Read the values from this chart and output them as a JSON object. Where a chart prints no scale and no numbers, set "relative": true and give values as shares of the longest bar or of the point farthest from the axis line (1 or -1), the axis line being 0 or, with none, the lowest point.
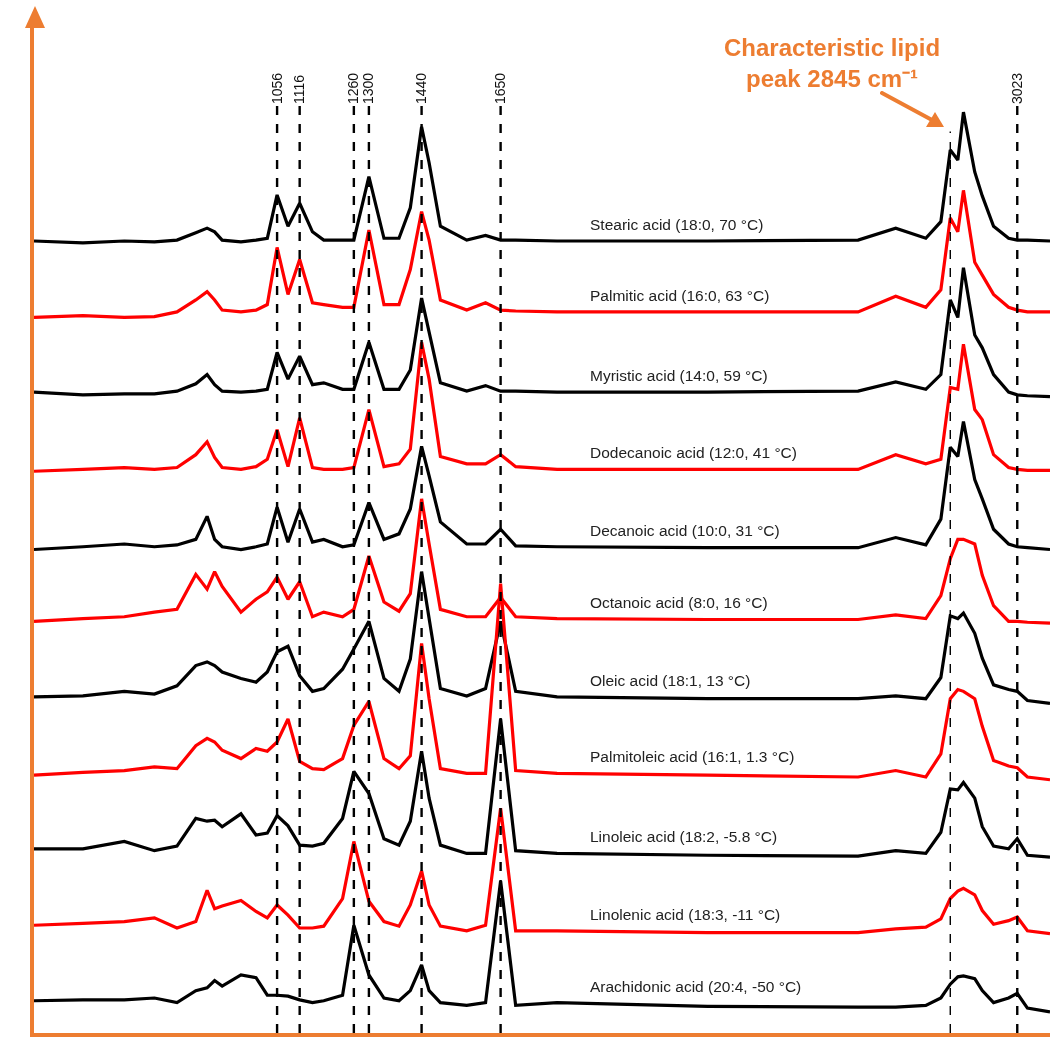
{
  "chart_data": {
    "type": "line",
    "relative": true,
    "legend": false,
    "grid": false,
    "tick_labels": "x",
    "marker": "none",
    "line_style": "solid",
    "xlim": [
      410,
      3110
    ],
    "xticks": [
      1056,
      1116,
      1260,
      1300,
      1440,
      1650,
      3023
    ],
    "x": [
      410,
      540,
      650,
      730,
      790,
      840,
      870,
      890,
      910,
      960,
      1000,
      1030,
      1056,
      1085,
      1116,
      1150,
      1180,
      1230,
      1260,
      1300,
      1340,
      1380,
      1410,
      1440,
      1460,
      1490,
      1560,
      1610,
      1650,
      1690,
      1800,
      2200,
      2600,
      2700,
      2780,
      2820,
      2845,
      2865,
      2880,
      2910,
      2930,
      2960,
      3000,
      3023,
      3050,
      3110
    ],
    "series": [
      {
        "name": "Stearic acid (18:0, 70 °C)",
        "color": "#000000",
        "values": [
          0.86,
          0.858,
          0.86,
          0.859,
          0.861,
          0.869,
          0.874,
          0.87,
          0.861,
          0.859,
          0.861,
          0.863,
          0.91,
          0.876,
          0.901,
          0.87,
          0.861,
          0.861,
          0.861,
          0.93,
          0.863,
          0.863,
          0.896,
          0.984,
          0.945,
          0.876,
          0.861,
          0.866,
          0.861,
          0.861,
          0.86,
          0.86,
          0.861,
          0.874,
          0.863,
          0.881,
          0.959,
          0.948,
          1.0,
          0.935,
          0.909,
          0.876,
          0.863,
          0.861,
          0.861,
          0.86
        ]
      },
      {
        "name": "Palmitic acid (16:0, 63 °C)",
        "color": "#ff0000",
        "values": [
          0.777,
          0.779,
          0.777,
          0.778,
          0.783,
          0.796,
          0.805,
          0.796,
          0.785,
          0.783,
          0.785,
          0.791,
          0.853,
          0.802,
          0.84,
          0.793,
          0.791,
          0.788,
          0.788,
          0.872,
          0.791,
          0.791,
          0.829,
          0.892,
          0.861,
          0.796,
          0.785,
          0.793,
          0.785,
          0.784,
          0.783,
          0.783,
          0.783,
          0.8,
          0.788,
          0.807,
          0.885,
          0.87,
          0.915,
          0.837,
          0.823,
          0.802,
          0.788,
          0.785,
          0.783,
          0.783
        ]
      },
      {
        "name": "Myristic acid (14:0, 59 °C)",
        "color": "#000000",
        "values": [
          0.696,
          0.693,
          0.694,
          0.694,
          0.697,
          0.705,
          0.715,
          0.704,
          0.697,
          0.696,
          0.697,
          0.699,
          0.739,
          0.71,
          0.735,
          0.704,
          0.706,
          0.699,
          0.699,
          0.75,
          0.699,
          0.699,
          0.72,
          0.798,
          0.761,
          0.706,
          0.697,
          0.703,
          0.697,
          0.697,
          0.696,
          0.696,
          0.697,
          0.707,
          0.699,
          0.715,
          0.796,
          0.777,
          0.831,
          0.758,
          0.744,
          0.715,
          0.696,
          0.693,
          0.692,
          0.691
        ]
      },
      {
        "name": "Dodecanoic acid (12:0, 41 °C)",
        "color": "#ff0000",
        "values": [
          0.61,
          0.612,
          0.614,
          0.612,
          0.614,
          0.628,
          0.642,
          0.625,
          0.614,
          0.612,
          0.615,
          0.623,
          0.655,
          0.615,
          0.668,
          0.614,
          0.612,
          0.612,
          0.614,
          0.677,
          0.615,
          0.618,
          0.634,
          0.75,
          0.71,
          0.626,
          0.618,
          0.618,
          0.628,
          0.615,
          0.612,
          0.612,
          0.612,
          0.628,
          0.618,
          0.623,
          0.701,
          0.699,
          0.748,
          0.677,
          0.666,
          0.628,
          0.614,
          0.612,
          0.611,
          0.611
        ]
      },
      {
        "name": "Decanoic acid (10:0, 31 °C)",
        "color": "#000000",
        "values": [
          0.525,
          0.528,
          0.531,
          0.528,
          0.53,
          0.536,
          0.561,
          0.536,
          0.528,
          0.525,
          0.528,
          0.531,
          0.571,
          0.533,
          0.569,
          0.533,
          0.536,
          0.528,
          0.53,
          0.576,
          0.536,
          0.542,
          0.569,
          0.637,
          0.605,
          0.555,
          0.531,
          0.531,
          0.547,
          0.529,
          0.528,
          0.527,
          0.527,
          0.538,
          0.53,
          0.558,
          0.636,
          0.626,
          0.664,
          0.601,
          0.58,
          0.547,
          0.531,
          0.528,
          0.527,
          0.525
        ]
      },
      {
        "name": "Octanoic acid (8:0, 16 °C)",
        "color": "#ff0000",
        "values": [
          0.447,
          0.45,
          0.452,
          0.457,
          0.46,
          0.498,
          0.482,
          0.501,
          0.485,
          0.457,
          0.471,
          0.479,
          0.495,
          0.471,
          0.49,
          0.452,
          0.457,
          0.452,
          0.46,
          0.518,
          0.468,
          0.458,
          0.477,
          0.58,
          0.531,
          0.46,
          0.452,
          0.452,
          0.473,
          0.452,
          0.45,
          0.449,
          0.449,
          0.454,
          0.45,
          0.475,
          0.515,
          0.536,
          0.536,
          0.531,
          0.497,
          0.464,
          0.447,
          0.447,
          0.446,
          0.445
        ]
      },
      {
        "name": "Oleic acid (18:1, 13 °C)",
        "color": "#000000",
        "values": [
          0.365,
          0.366,
          0.371,
          0.368,
          0.377,
          0.399,
          0.403,
          0.399,
          0.392,
          0.385,
          0.381,
          0.392,
          0.414,
          0.42,
          0.388,
          0.371,
          0.374,
          0.395,
          0.417,
          0.447,
          0.385,
          0.371,
          0.406,
          0.501,
          0.45,
          0.374,
          0.366,
          0.374,
          0.447,
          0.371,
          0.365,
          0.363,
          0.363,
          0.366,
          0.363,
          0.386,
          0.453,
          0.45,
          0.456,
          0.434,
          0.407,
          0.378,
          0.373,
          0.371,
          0.361,
          0.358
        ]
      },
      {
        "name": "Palmitoleic acid (16:1, 1.3 °C)",
        "color": "#ff0000",
        "values": [
          0.28,
          0.283,
          0.285,
          0.289,
          0.287,
          0.312,
          0.32,
          0.316,
          0.307,
          0.298,
          0.309,
          0.306,
          0.316,
          0.341,
          0.295,
          0.287,
          0.286,
          0.298,
          0.334,
          0.36,
          0.298,
          0.287,
          0.301,
          0.423,
          0.363,
          0.287,
          0.282,
          0.282,
          0.488,
          0.285,
          0.282,
          0.28,
          0.278,
          0.285,
          0.278,
          0.303,
          0.363,
          0.373,
          0.371,
          0.363,
          0.333,
          0.296,
          0.29,
          0.288,
          0.278,
          0.275
        ]
      },
      {
        "name": "Linoleic acid (18:2, -5.8 °C)",
        "color": "#000000",
        "values": [
          0.2,
          0.2,
          0.208,
          0.198,
          0.203,
          0.233,
          0.23,
          0.231,
          0.224,
          0.238,
          0.215,
          0.217,
          0.236,
          0.225,
          0.204,
          0.203,
          0.206,
          0.233,
          0.284,
          0.26,
          0.211,
          0.204,
          0.23,
          0.306,
          0.255,
          0.204,
          0.195,
          0.195,
          0.341,
          0.198,
          0.195,
          0.193,
          0.192,
          0.198,
          0.195,
          0.218,
          0.265,
          0.264,
          0.272,
          0.255,
          0.224,
          0.203,
          0.2,
          0.211,
          0.193,
          0.191
        ]
      },
      {
        "name": "Linolenic acid (18:3, -11 °C)",
        "color": "#ff0000",
        "values": [
          0.117,
          0.119,
          0.121,
          0.125,
          0.114,
          0.121,
          0.155,
          0.135,
          0.138,
          0.144,
          0.132,
          0.125,
          0.139,
          0.128,
          0.114,
          0.114,
          0.116,
          0.146,
          0.208,
          0.143,
          0.121,
          0.116,
          0.139,
          0.176,
          0.139,
          0.116,
          0.111,
          0.117,
          0.244,
          0.111,
          0.111,
          0.109,
          0.109,
          0.113,
          0.115,
          0.124,
          0.146,
          0.154,
          0.157,
          0.15,
          0.133,
          0.118,
          0.122,
          0.126,
          0.111,
          0.108
        ]
      },
      {
        "name": "Arachidonic acid (20:4, -50 °C)",
        "color": "#000000",
        "values": [
          0.035,
          0.036,
          0.036,
          0.038,
          0.033,
          0.046,
          0.049,
          0.057,
          0.051,
          0.063,
          0.06,
          0.041,
          0.041,
          0.04,
          0.036,
          0.033,
          0.035,
          0.041,
          0.117,
          0.063,
          0.038,
          0.035,
          0.046,
          0.074,
          0.046,
          0.033,
          0.03,
          0.033,
          0.165,
          0.03,
          0.033,
          0.029,
          0.028,
          0.028,
          0.03,
          0.038,
          0.053,
          0.061,
          0.062,
          0.059,
          0.046,
          0.033,
          0.038,
          0.043,
          0.027,
          0.023
        ]
      }
    ],
    "ref_lines": [
      {
        "axis": "x",
        "value": 1056,
        "line_style": "dashed"
      },
      {
        "axis": "x",
        "value": 1116,
        "line_style": "dashed"
      },
      {
        "axis": "x",
        "value": 1260,
        "line_style": "dashed"
      },
      {
        "axis": "x",
        "value": 1300,
        "line_style": "dashed"
      },
      {
        "axis": "x",
        "value": 1440,
        "line_style": "dashed"
      },
      {
        "axis": "x",
        "value": 1650,
        "line_style": "dashed"
      },
      {
        "axis": "x",
        "value": 2845,
        "line_style": "dashed"
      },
      {
        "axis": "x",
        "value": 3023,
        "line_style": "dashed"
      }
    ],
    "annotations": [
      "Characteristic lipid peak 2845 cm⁻¹"
    ]
  }
}
